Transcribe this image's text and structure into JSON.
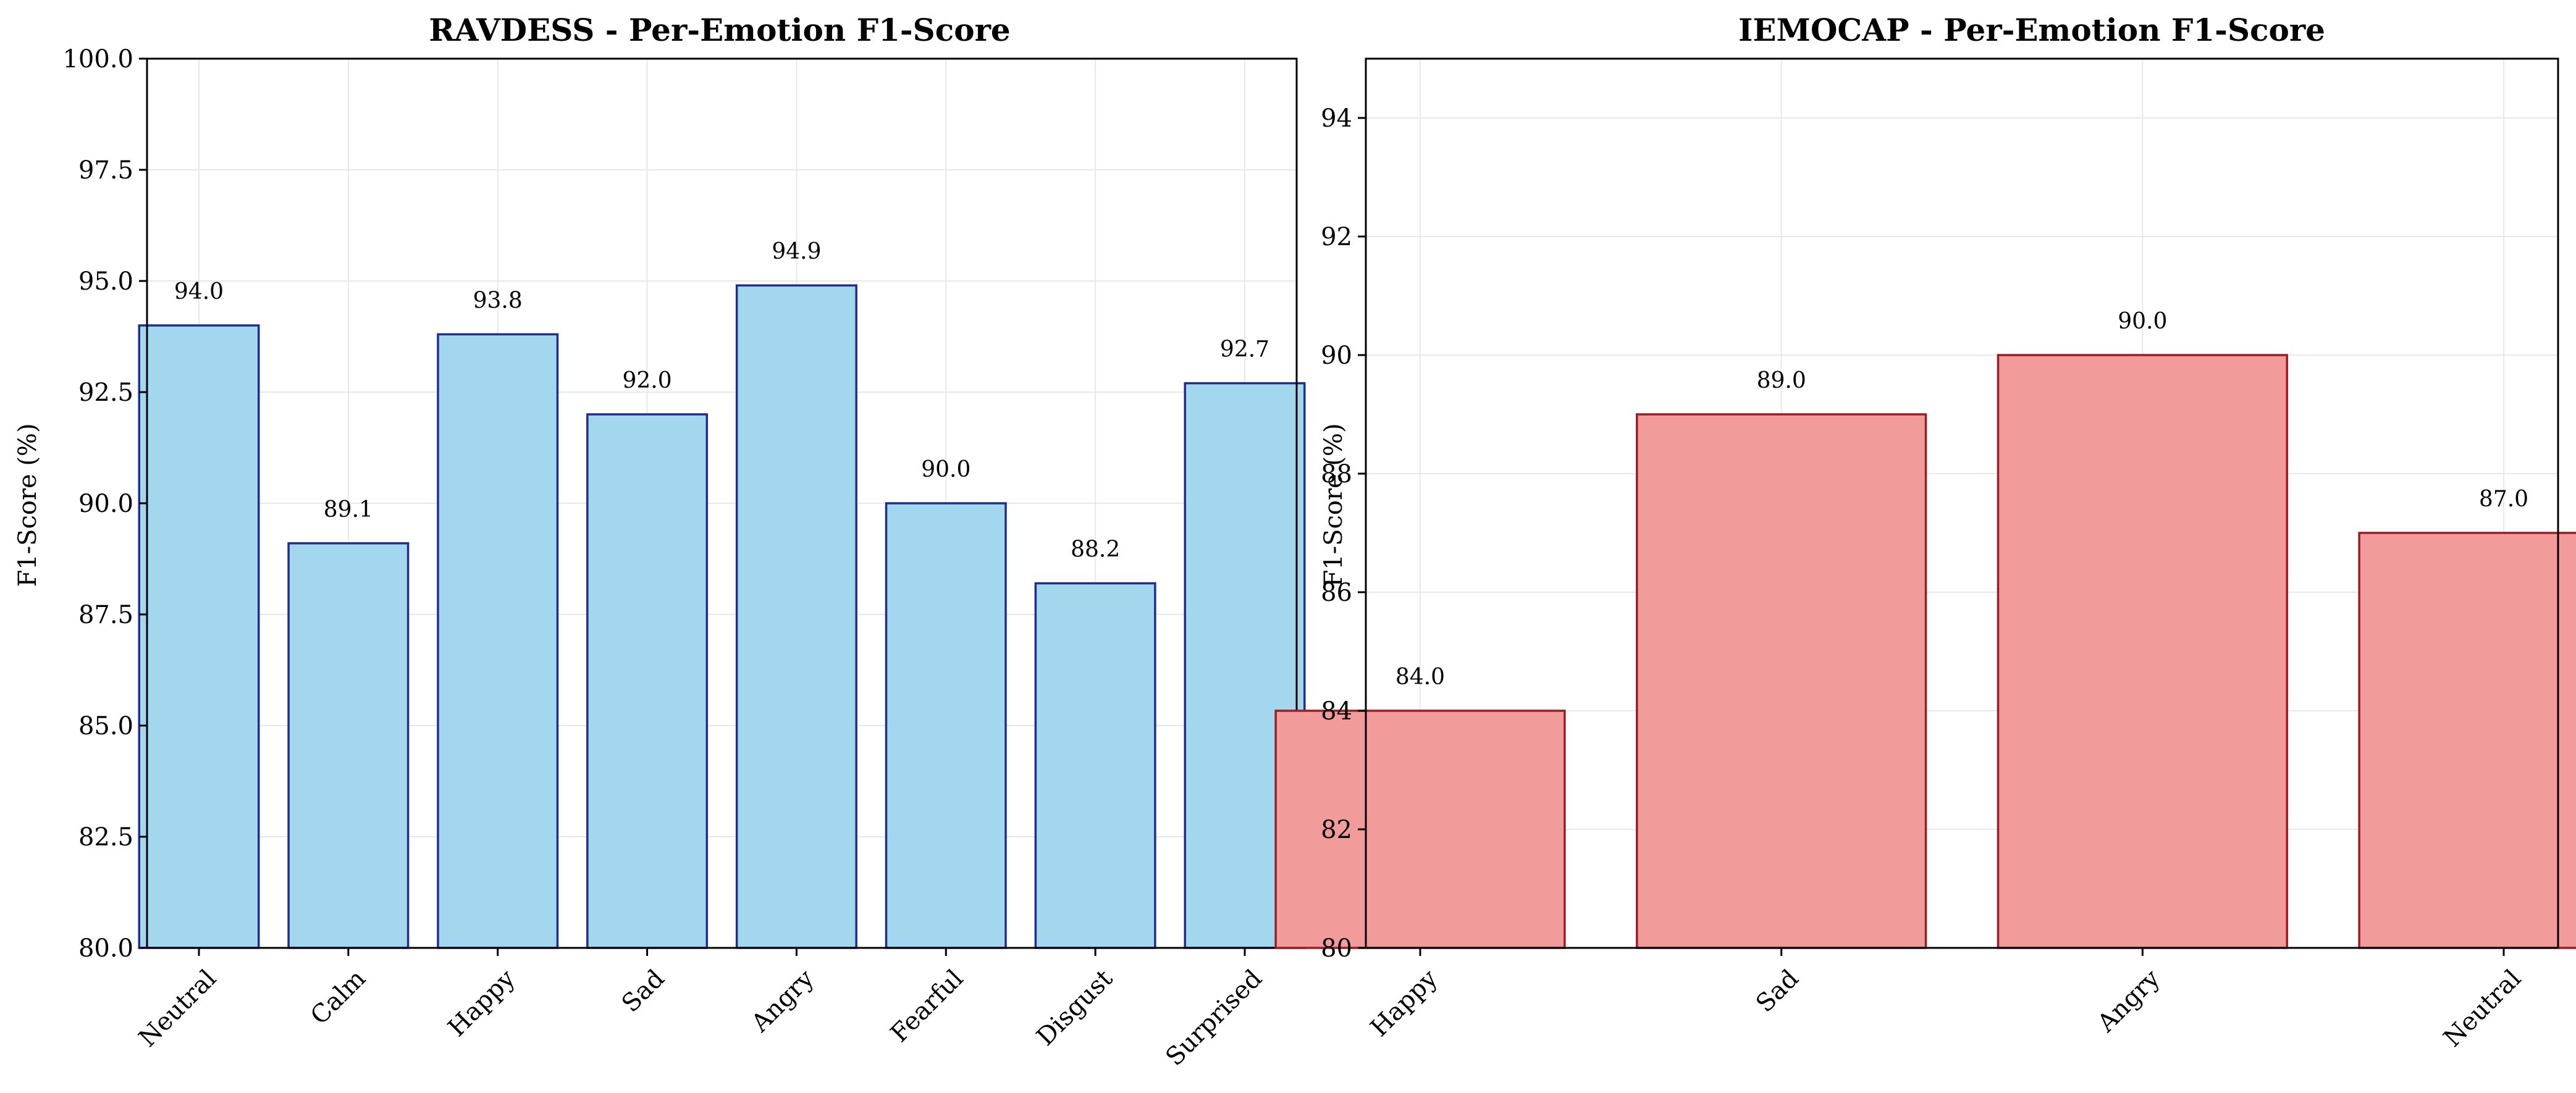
{
  "chart_data": [
    {
      "type": "bar",
      "title": "RAVDESS - Per-Emotion F1-Score",
      "xlabel": "",
      "ylabel": "F1-Score (%)",
      "categories": [
        "Neutral",
        "Calm",
        "Happy",
        "Sad",
        "Angry",
        "Fearful",
        "Disgust",
        "Surprised"
      ],
      "values": [
        94.0,
        89.1,
        93.8,
        92.0,
        94.9,
        90.0,
        88.2,
        92.7
      ],
      "data_labels": [
        "94.0",
        "89.1",
        "93.8",
        "92.0",
        "94.9",
        "90.0",
        "88.2",
        "92.7"
      ],
      "ylim": [
        80,
        100
      ],
      "yticks": [
        80.0,
        82.5,
        85.0,
        87.5,
        90.0,
        92.5,
        95.0,
        97.5,
        100.0
      ],
      "ytick_labels": [
        "80.0",
        "82.5",
        "85.0",
        "87.5",
        "90.0",
        "92.5",
        "95.0",
        "97.5",
        "100.0"
      ],
      "grid": true,
      "colors": {
        "fill": "#a3d7ee",
        "edge": "#1f2d8f"
      }
    },
    {
      "type": "bar",
      "title": "IEMOCAP - Per-Emotion F1-Score",
      "xlabel": "",
      "ylabel": "F1-Score (%)",
      "categories": [
        "Happy",
        "Sad",
        "Angry",
        "Neutral"
      ],
      "values": [
        84.0,
        89.0,
        90.0,
        87.0
      ],
      "data_labels": [
        "84.0",
        "89.0",
        "90.0",
        "87.0"
      ],
      "ylim": [
        80,
        95
      ],
      "yticks": [
        80,
        82,
        84,
        86,
        88,
        90,
        92,
        94
      ],
      "ytick_labels": [
        "80",
        "82",
        "84",
        "86",
        "88",
        "90",
        "92",
        "94"
      ],
      "grid": true,
      "colors": {
        "fill": "#f29b9b",
        "edge": "#9b1c24"
      }
    }
  ]
}
